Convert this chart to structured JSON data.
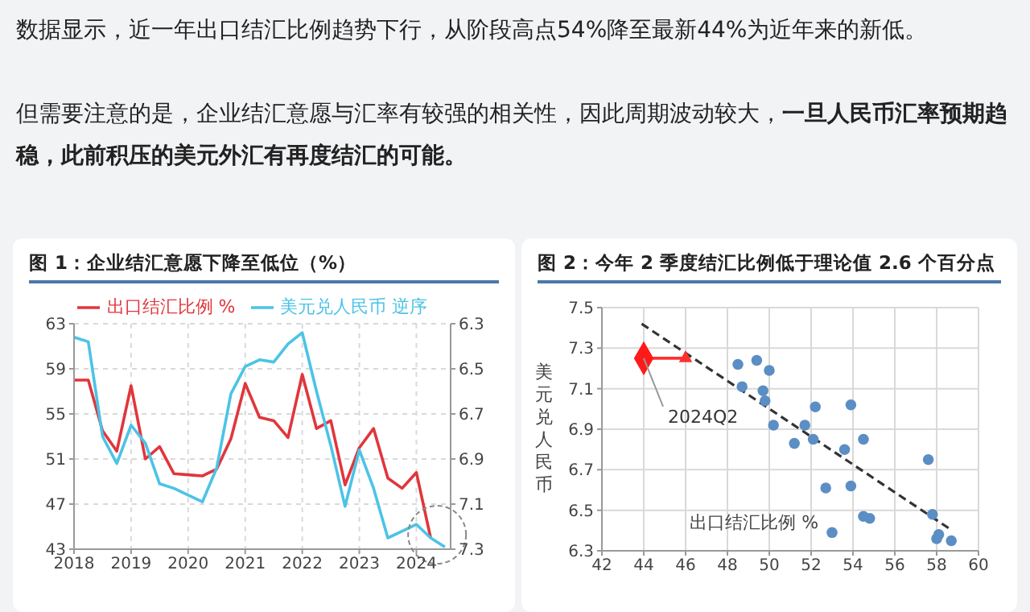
{
  "chart_data": [
    {
      "type": "other",
      "annotations": [
        "数据显示，近一年出口结汇比例趋势下行，从阶段高点54%降至最新44%为近年来的新低。",
        "但需要注意的是，企业结汇意愿与汇率有较强的相关性，因此周期波动较大，",
        "一旦人民币汇率预期趋稳，此前积压的美元外汇有再度结汇的可能。"
      ]
    },
    {
      "type": "line",
      "title": "图 1：企业结汇意愿下降至低位（%）",
      "x": [
        2018,
        2018.25,
        2018.5,
        2018.75,
        2019,
        2019.25,
        2019.5,
        2019.75,
        2020,
        2020.25,
        2020.5,
        2020.75,
        2021,
        2021.25,
        2021.5,
        2021.75,
        2022,
        2022.25,
        2022.5,
        2022.75,
        2023,
        2023.25,
        2023.5,
        2023.75,
        2024,
        2024.25,
        2024.5
      ],
      "xlim": [
        2018,
        2024.6
      ],
      "xticks": [
        2018,
        2019,
        2020,
        2021,
        2022,
        2023,
        2024
      ],
      "ylim": [
        43,
        63
      ],
      "yticks": [
        43,
        47,
        51,
        55,
        59,
        63
      ],
      "y2lim": [
        7.3,
        6.3
      ],
      "y2ticks": [
        6.3,
        6.5,
        6.7,
        6.9,
        7.1,
        7.3
      ],
      "grid": true,
      "legend": "top",
      "marker": "none",
      "series": [
        {
          "name": "出口结汇比例 %",
          "color": "#e0363c",
          "values": [
            58.0,
            58.0,
            53.5,
            51.7,
            57.5,
            51.0,
            52.1,
            49.7,
            49.6,
            49.5,
            50.1,
            52.8,
            57.7,
            54.7,
            54.4,
            52.9,
            58.5,
            53.7,
            54.4,
            48.7,
            52.0,
            53.7,
            49.3,
            48.4,
            49.8,
            44.0,
            null
          ]
        },
        {
          "name": "美元兑人民币 逆序",
          "color": "#4cc3e6",
          "axis": "y2",
          "values": [
            6.36,
            6.38,
            6.8,
            6.92,
            6.75,
            6.83,
            7.01,
            7.03,
            7.06,
            7.09,
            6.94,
            6.61,
            6.49,
            6.46,
            6.47,
            6.39,
            6.34,
            6.6,
            6.84,
            7.11,
            6.86,
            7.03,
            7.25,
            7.22,
            7.19,
            7.25,
            7.29
          ]
        }
      ]
    },
    {
      "type": "scatter",
      "title": "图 2：今年 2 季度结汇比例低于理论值 2.6 个百分点",
      "xlabel": "出口结汇比例 %",
      "ylabel": "美元兑人民币",
      "xlim": [
        42,
        60
      ],
      "xticks": [
        42,
        44,
        46,
        48,
        50,
        52,
        54,
        56,
        58,
        60
      ],
      "ylim": [
        6.3,
        7.5
      ],
      "yticks": [
        6.3,
        6.5,
        6.7,
        6.9,
        7.1,
        7.3,
        7.5
      ],
      "grid": true,
      "annotations": [
        {
          "text": "2024Q2",
          "x": 44,
          "y": 7.25
        }
      ],
      "series": [
        {
          "color": "#5b8ec4",
          "marker": "circle",
          "x": [
            48.5,
            49.4,
            48.7,
            50.0,
            49.7,
            49.8,
            50.2,
            51.7,
            52.2,
            53.9,
            51.2,
            52.1,
            53.6,
            54.5,
            52.7,
            53.9,
            53.0,
            54.5,
            54.8,
            57.6,
            57.8,
            58.1,
            58.0,
            58.7
          ],
          "values": [
            7.22,
            7.24,
            7.11,
            7.19,
            7.09,
            7.04,
            6.92,
            6.92,
            7.01,
            7.02,
            6.83,
            6.85,
            6.8,
            6.85,
            6.61,
            6.62,
            6.39,
            6.47,
            6.46,
            6.75,
            6.48,
            6.38,
            6.36,
            6.35
          ]
        },
        {
          "type": "line",
          "color": "#333333",
          "line_style": "dashed",
          "marker": "none",
          "x": [
            43.9,
            58.6
          ],
          "values": [
            7.42,
            6.41
          ]
        },
        {
          "type": "line",
          "color": "#ff3030",
          "line_style": "solid",
          "marker": "triangle",
          "x": [
            44,
            46
          ],
          "values": [
            7.25,
            7.25
          ]
        },
        {
          "color": "#ff1a1a",
          "marker": "diamond",
          "x": [
            44
          ],
          "values": [
            7.25
          ]
        }
      ]
    }
  ]
}
